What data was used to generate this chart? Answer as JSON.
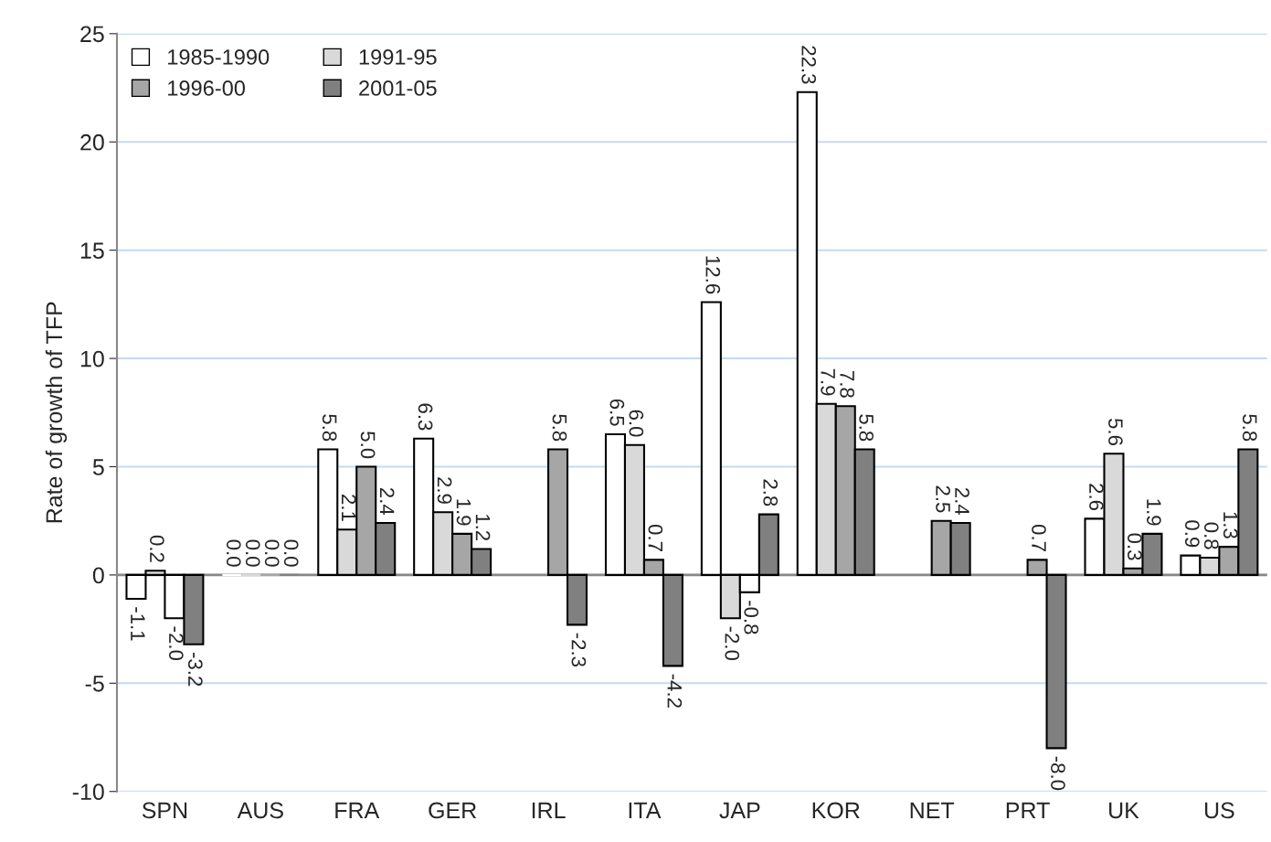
{
  "chart_data": {
    "type": "bar",
    "ylabel": "Rate of growth of TFP",
    "categories": [
      "SPN",
      "AUS",
      "FRA",
      "GER",
      "IRL",
      "ITA",
      "JAP",
      "KOR",
      "NET",
      "PRT",
      "UK",
      "US"
    ],
    "series": [
      {
        "name": "1985-1990",
        "color": "#ffffff",
        "values": [
          -1.1,
          0.0,
          5.8,
          6.3,
          null,
          6.5,
          12.6,
          22.3,
          null,
          null,
          2.6,
          0.9
        ],
        "value_labels": [
          "-1.1",
          "0.0",
          "5.8",
          "6.3",
          null,
          "6.5",
          "12.6",
          "22.3",
          null,
          null,
          "2.6",
          "0.9"
        ]
      },
      {
        "name": "1991-95",
        "color": "#d9d9d9",
        "values": [
          0.2,
          0.0,
          2.1,
          2.9,
          null,
          6.0,
          -2.0,
          7.9,
          null,
          null,
          5.6,
          0.8
        ],
        "value_labels": [
          "0.2",
          "0.0",
          "2.1",
          "2.9",
          null,
          "6.0",
          "-2.0",
          "7.9",
          null,
          null,
          "5.6",
          "0.8"
        ]
      },
      {
        "name": "1996-00",
        "color": "#a6a6a6",
        "colors": [
          "#ffffff",
          "#a6a6a6",
          "#a6a6a6",
          "#a6a6a6",
          "#a6a6a6",
          "#a6a6a6",
          "#ffffff",
          "#a6a6a6",
          "#a6a6a6",
          "#a6a6a6",
          "#a6a6a6",
          "#a6a6a6"
        ],
        "values": [
          -2.0,
          0.0,
          5.0,
          1.9,
          5.8,
          0.7,
          -0.8,
          7.8,
          2.5,
          0.7,
          0.3,
          1.3
        ],
        "value_labels": [
          "-2.0",
          "0.0",
          "5.0",
          "1.9",
          "5.8",
          "0.7",
          "-0.8",
          "7.8",
          "2.5",
          "0.7",
          "0.3",
          "1.3"
        ]
      },
      {
        "name": "2001-05",
        "color": "#808080",
        "values": [
          -3.2,
          0.0,
          2.4,
          1.2,
          -2.3,
          -4.2,
          2.8,
          5.8,
          2.4,
          -8.0,
          1.9,
          5.8
        ],
        "value_labels": [
          "-3.2",
          "0.0",
          "2.4",
          "1.2",
          "-2.3",
          "-4.2",
          "2.8",
          "5.8",
          "2.4",
          "-8.0",
          "1.9",
          "5.8"
        ]
      }
    ],
    "ylim": [
      -10,
      25
    ],
    "yticks": [
      -10,
      -5,
      0,
      5,
      10,
      15,
      20,
      25
    ],
    "grid": "y",
    "legend": "top left"
  }
}
